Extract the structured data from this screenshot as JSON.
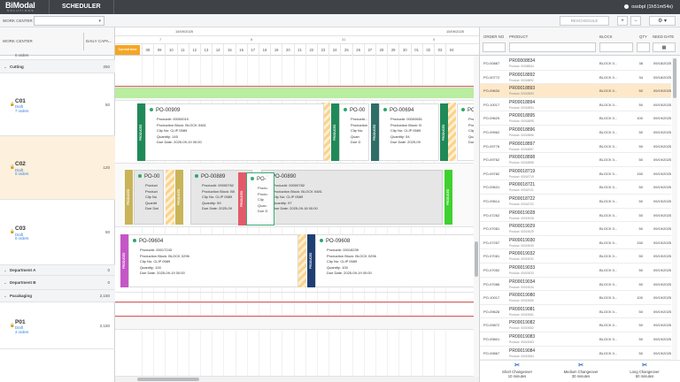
{
  "header": {
    "brand": "BiModal",
    "brand_sub": "SOLUTIONS",
    "module": "SCHEDULER",
    "user": "ossbpl (1h51m54s)"
  },
  "toolbar": {
    "work_center_label": "WORK CENTER",
    "reschedule": "RESCHEDULE",
    "zoom_in": "+",
    "zoom_out": "−",
    "settings": "⚙ ▾"
  },
  "left_headers": {
    "work_center": "WORK CENTER",
    "daily_capacity": "DAILY CAPA..."
  },
  "work_centers": [
    {
      "kind": "machine",
      "name": "",
      "sub": "0 orders",
      "cap": ""
    },
    {
      "kind": "group",
      "name": "Cutting",
      "cap": "250"
    },
    {
      "kind": "machine",
      "name": "C01",
      "draft": "Draft",
      "sub": "7 orders",
      "cap": "50"
    },
    {
      "kind": "machine",
      "name": "C02",
      "draft": "Draft",
      "sub": "0 orders",
      "cap": "120"
    },
    {
      "kind": "machine",
      "name": "C03",
      "draft": "Draft",
      "sub": "0 orders",
      "cap": "50"
    },
    {
      "kind": "group",
      "name": "Department A",
      "cap": "0"
    },
    {
      "kind": "group",
      "name": "Department B",
      "cap": "0"
    },
    {
      "kind": "group",
      "name": "Pacakaging",
      "cap": "2,150"
    },
    {
      "kind": "machine",
      "name": "P01",
      "draft": "Draft",
      "sub": "3 orders",
      "cap": "2,150"
    }
  ],
  "timeline": {
    "dates": [
      "15/09/2025",
      "15/09/2025"
    ],
    "weeks": [
      "7",
      "8",
      "31",
      "5"
    ],
    "days": [
      "08",
      "09",
      "10",
      "11",
      "12",
      "13",
      "14",
      "15",
      "16",
      "17",
      "18",
      "19",
      "20",
      "21",
      "22",
      "23",
      "24",
      "25",
      "26",
      "27",
      "28",
      "29",
      "30",
      "01",
      "02",
      "03",
      "04"
    ],
    "current_time": "Current time"
  },
  "cards": [
    {
      "po": "PO-00909",
      "product": "Product#: 00000010",
      "block": "Production Block: BLOCK 0481",
      "clip": "Clip No: CLIP 0589",
      "qty": "Quantity: 145",
      "due": "Due Date: 2025-09-19 00:00",
      "tab": "PRODUCED"
    },
    {
      "po": "PO-00",
      "product": "Product#...",
      "block": "Production Block: B",
      "clip": "Clip No:",
      "qty": "Quan",
      "due": "Due D",
      "tab": "PRODUCED"
    },
    {
      "po": "PO-00694",
      "product": "Product#: 00000651",
      "block": "Production Block: B",
      "clip": "Clip No: CLIP 0589",
      "qty": "Quantity: 54",
      "due": "Due Date: 2025-09",
      "tab": "PRODUCED"
    },
    {
      "po": "PO-0",
      "product": "Produ",
      "block": "Produ",
      "clip": "Clip",
      "qty": "Quan",
      "due": "Due",
      "tab": "PRODUCED"
    },
    {
      "po": "PO-00",
      "product": "Product",
      "block": "Product",
      "clip": "Clip No",
      "qty": "Quantit",
      "due": "Due Dat",
      "tab": "PRODUCED"
    },
    {
      "po": "PO-00889",
      "product": "Product#: 00000762",
      "block": "Production Block: B0",
      "clip": "Clip No: CLIP 0589",
      "qty": "Quantity: 59",
      "due": "Due Date: 2025-09",
      "tab": "PRODUCED"
    },
    {
      "po": "PO-00890",
      "product": "Product#: 00000782",
      "block": "Production Block: BLOCK 0481",
      "clip": "Clip No: CLIP 0589",
      "qty": "Quantity: 97",
      "due": "Due Date: 2025-09-18 00:00",
      "tab": "PRODUCED"
    },
    {
      "po": "PO-",
      "product": "Produ",
      "block": "Produ",
      "clip": "Clip",
      "qty": "Quan",
      "due": "Due D",
      "tab": "PRODUCED"
    },
    {
      "po": "PO-09604",
      "product": "Product#: 00017243",
      "block": "Production Block: BLOCK 0296",
      "clip": "Clip No: CLIP 0589",
      "qty": "Quantity: 100",
      "due": "Due Date: 2025-09-19 00:00",
      "tab": "PRODUCED"
    },
    {
      "po": "PO-09608",
      "product": "Product#: 00018239",
      "block": "Production Block: BLOCK 0296",
      "clip": "Clip No: CLIP 0589",
      "qty": "Quantity: 100",
      "due": "Due Date: 2025-09-19 00:00",
      "tab": "PRODUCED"
    }
  ],
  "orders_headers": {
    "order": "ORDER NO",
    "product": "PRODUCT",
    "block": "BLOCK",
    "qty": "QTY",
    "need": "NEED DATE"
  },
  "orders": [
    {
      "no": "PO-00887",
      "p": "PR00008834",
      "ps": "Product: 00008834",
      "b": "BLOCK 0...",
      "q": "38",
      "d": "09/18/2025",
      "hl": false
    },
    {
      "no": "PO-00772",
      "p": "PR00018892",
      "ps": "Product: 00018892",
      "b": "BLOCK 0...",
      "q": "34",
      "d": "09/18/2025",
      "hl": false
    },
    {
      "no": "PO-09634",
      "p": "PR00018893",
      "ps": "Product: 00018893",
      "b": "BLOCK 0...",
      "q": "50",
      "d": "09/19/2025",
      "hl": true
    },
    {
      "no": "PO-10017",
      "p": "PR00018894",
      "ps": "Product: 00018894",
      "b": "BLOCK 0...",
      "q": "50",
      "d": "09/19/2025",
      "hl": false
    },
    {
      "no": "PO-09625",
      "p": "PR00018895",
      "ps": "Product: 00018895",
      "b": "BLOCK 0...",
      "q": "100",
      "d": "09/19/2025",
      "hl": false
    },
    {
      "no": "PO-09962",
      "p": "PR00018896",
      "ps": "Product: 00018896",
      "b": "BLOCK 0...",
      "q": "50",
      "d": "09/19/2025",
      "hl": false
    },
    {
      "no": "PO-09776",
      "p": "PR00018897",
      "ps": "Product: 00018897",
      "b": "BLOCK 0...",
      "q": "50",
      "d": "09/19/2025",
      "hl": false
    },
    {
      "no": "PO-09762",
      "p": "PR00018898",
      "ps": "Product: 00018898",
      "b": "BLOCK 0...",
      "q": "50",
      "d": "09/19/2025",
      "hl": false
    },
    {
      "no": "PO-09782",
      "p": "PR00018719",
      "ps": "Product: 00018719",
      "b": "BLOCK 0...",
      "q": "150",
      "d": "09/19/2025",
      "hl": false
    },
    {
      "no": "PO-09631",
      "p": "PR00018721",
      "ps": "Product: 00018721",
      "b": "BLOCK 0...",
      "q": "50",
      "d": "09/19/2025",
      "hl": false
    },
    {
      "no": "PO-09614",
      "p": "PR00018722",
      "ps": "Product: 00018722",
      "b": "BLOCK 0...",
      "q": "50",
      "d": "09/19/2025",
      "hl": false
    },
    {
      "no": "PO-07262",
      "p": "PR00019028",
      "ps": "Product: 00019028",
      "b": "BLOCK 0...",
      "q": "50",
      "d": "09/19/2025",
      "hl": false
    },
    {
      "no": "PO-07081",
      "p": "PR00019029",
      "ps": "Product: 00019029",
      "b": "BLOCK 0...",
      "q": "50",
      "d": "09/19/2025",
      "hl": false
    },
    {
      "no": "PO-07257",
      "p": "PR00019030",
      "ps": "Product: 00019030",
      "b": "BLOCK 0...",
      "q": "150",
      "d": "09/19/2025",
      "hl": false
    },
    {
      "no": "PO-07081",
      "p": "PR00019032",
      "ps": "Product: 00019032",
      "b": "BLOCK 0...",
      "q": "50",
      "d": "09/19/2025",
      "hl": false
    },
    {
      "no": "PO-07052",
      "p": "PR00019033",
      "ps": "Product: 00019033",
      "b": "BLOCK 0...",
      "q": "50",
      "d": "09/19/2025",
      "hl": false
    },
    {
      "no": "PO-07086",
      "p": "PR00019034",
      "ps": "Product: 00019034",
      "b": "BLOCK 0...",
      "q": "50",
      "d": "09/19/2025",
      "hl": false
    },
    {
      "no": "PO-10017",
      "p": "PR00019080",
      "ps": "Product: 00019080",
      "b": "BLOCK 0...",
      "q": "100",
      "d": "09/19/2025",
      "hl": false
    },
    {
      "no": "PO-09628",
      "p": "PR00019081",
      "ps": "Product: 00019081",
      "b": "BLOCK 0...",
      "q": "50",
      "d": "09/19/2025",
      "hl": false
    },
    {
      "no": "PO-09872",
      "p": "PR00019082",
      "ps": "Product: 00019082",
      "b": "BLOCK 0...",
      "q": "50",
      "d": "09/19/2025",
      "hl": false
    },
    {
      "no": "PO-09801",
      "p": "PR00019083",
      "ps": "Product: 00019083",
      "b": "BLOCK 0...",
      "q": "50",
      "d": "09/19/2025",
      "hl": false
    },
    {
      "no": "PO-09867",
      "p": "PR00019084",
      "ps": "Product: 00019084",
      "b": "BLOCK 0...",
      "q": "50",
      "d": "09/19/2025",
      "hl": false
    }
  ],
  "legend": [
    {
      "title": "Short Changeover",
      "sub": "10 minutes"
    },
    {
      "title": "Medium Changeover",
      "sub": "30 minutes"
    },
    {
      "title": "Long Changeover",
      "sub": "60 minutes"
    }
  ],
  "colors": {
    "accent": "#2d6fc4",
    "current_time": "#f5a623",
    "highlight_row": "#fde9c9",
    "capacity_line": "#e45c5c",
    "green_status": "#2ba86e"
  }
}
